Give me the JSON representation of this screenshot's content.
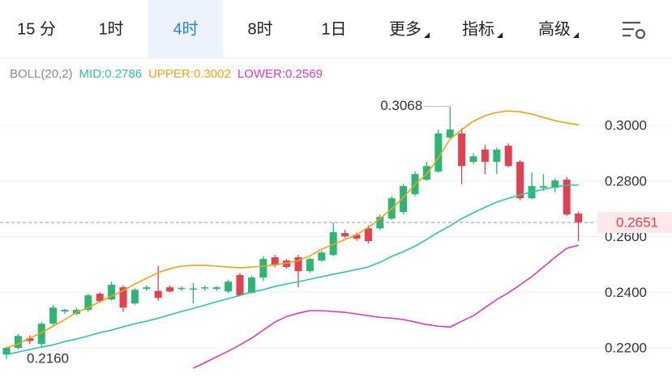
{
  "tabs": [
    {
      "label": "15 分"
    },
    {
      "label": "1时"
    },
    {
      "label": "4时"
    },
    {
      "label": "8时"
    },
    {
      "label": "1日"
    },
    {
      "label": "更多",
      "menu": true
    },
    {
      "label": "指标",
      "menu": true
    },
    {
      "label": "高级",
      "menu": true
    }
  ],
  "active_tab": 2,
  "chart_data": {
    "type": "candlestick",
    "subtitle": "BOLL(20,2)",
    "up_color": "#2bb673",
    "down_color": "#e5404f",
    "open": [
      0.2176,
      0.22,
      0.2235,
      0.2214,
      0.2287,
      0.2331,
      0.2322,
      0.2337,
      0.2395,
      0.2374,
      0.2418,
      0.236,
      0.2412,
      0.2405,
      0.2418,
      0.2412,
      0.2412,
      0.2414,
      0.2412,
      0.2403,
      0.2462,
      0.2398,
      0.2453,
      0.2526,
      0.2514,
      0.2526,
      0.2476,
      0.2514,
      0.2534,
      0.2613,
      0.2607,
      0.263,
      0.263,
      0.2665,
      0.2689,
      0.2753,
      0.2805,
      0.2834,
      0.2956,
      0.2971,
      0.2869,
      0.2913,
      0.2869,
      0.2927,
      0.2869,
      0.2738,
      0.2776,
      0.2776,
      0.2805,
      0.2683
    ],
    "high": [
      0.2205,
      0.225,
      0.2245,
      0.2295,
      0.2355,
      0.234,
      0.2345,
      0.2395,
      0.24,
      0.2438,
      0.2425,
      0.2415,
      0.2425,
      0.2495,
      0.2425,
      0.2422,
      0.2433,
      0.2425,
      0.2422,
      0.2445,
      0.247,
      0.246,
      0.253,
      0.2535,
      0.252,
      0.2535,
      0.2525,
      0.255,
      0.2651,
      0.2625,
      0.2615,
      0.264,
      0.268,
      0.2745,
      0.279,
      0.2835,
      0.287,
      0.2985,
      0.3068,
      0.299,
      0.29,
      0.293,
      0.292,
      0.2935,
      0.2875,
      0.2831,
      0.2825,
      0.281,
      0.2815,
      0.269
    ],
    "low": [
      0.216,
      0.2194,
      0.2214,
      0.2205,
      0.228,
      0.2322,
      0.2318,
      0.233,
      0.2365,
      0.237,
      0.233,
      0.2355,
      0.2405,
      0.237,
      0.24,
      0.2405,
      0.236,
      0.2405,
      0.2405,
      0.2398,
      0.2385,
      0.2395,
      0.244,
      0.249,
      0.2485,
      0.2418,
      0.247,
      0.251,
      0.253,
      0.2595,
      0.2585,
      0.2575,
      0.2625,
      0.266,
      0.268,
      0.2745,
      0.28,
      0.283,
      0.295,
      0.2788,
      0.286,
      0.2825,
      0.2825,
      0.285,
      0.273,
      0.2735,
      0.2765,
      0.276,
      0.2675,
      0.2584
    ],
    "close": [
      0.22,
      0.2243,
      0.2225,
      0.2287,
      0.2345,
      0.2337,
      0.2337,
      0.2389,
      0.2368,
      0.2427,
      0.2345,
      0.2409,
      0.2418,
      0.238,
      0.2403,
      0.2416,
      0.2414,
      0.2418,
      0.2418,
      0.2438,
      0.2389,
      0.2453,
      0.252,
      0.2497,
      0.2491,
      0.2476,
      0.252,
      0.2543,
      0.2616,
      0.2601,
      0.2593,
      0.2584,
      0.2671,
      0.2738,
      0.2782,
      0.2825,
      0.2854,
      0.2971,
      0.2985,
      0.2854,
      0.2889,
      0.2869,
      0.2913,
      0.2854,
      0.2738,
      0.2782,
      0.2782,
      0.2802,
      0.268,
      0.2651
    ],
    "series": [
      {
        "name": "MID:0.2786",
        "color": "#2ec4a6",
        "values": [
          0.2177,
          0.2185,
          0.2194,
          0.2203,
          0.2211,
          0.2223,
          0.2232,
          0.2243,
          0.2255,
          0.2264,
          0.2276,
          0.2287,
          0.2296,
          0.2307,
          0.2319,
          0.2331,
          0.2342,
          0.2354,
          0.2366,
          0.2377,
          0.2389,
          0.2401,
          0.2409,
          0.2421,
          0.243,
          0.2438,
          0.2447,
          0.2456,
          0.2465,
          0.2473,
          0.2482,
          0.2491,
          0.2508,
          0.2529,
          0.2546,
          0.2566,
          0.259,
          0.2616,
          0.2639,
          0.2665,
          0.2686,
          0.2706,
          0.2724,
          0.2738,
          0.275,
          0.2761,
          0.277,
          0.2779,
          0.2785,
          0.2786
        ]
      },
      {
        "name": "UPPER:0.3002",
        "color": "#eda612",
        "values": [
          0.22,
          0.2214,
          0.2235,
          0.2255,
          0.2278,
          0.2302,
          0.2328,
          0.2345,
          0.2366,
          0.2386,
          0.2406,
          0.243,
          0.245,
          0.2471,
          0.2485,
          0.2494,
          0.2497,
          0.2497,
          0.2494,
          0.2491,
          0.2488,
          0.2491,
          0.2494,
          0.2499,
          0.2505,
          0.2514,
          0.2531,
          0.2555,
          0.2572,
          0.259,
          0.2607,
          0.2633,
          0.2665,
          0.27,
          0.2741,
          0.2788,
          0.2825,
          0.2884,
          0.2951,
          0.2985,
          0.3015,
          0.3035,
          0.3047,
          0.3052,
          0.3049,
          0.3041,
          0.3029,
          0.3017,
          0.3009,
          0.3002
        ]
      },
      {
        "name": "LOWER:0.2569",
        "color": "#d83cbd",
        "values": [
          null,
          null,
          null,
          null,
          null,
          null,
          null,
          null,
          null,
          null,
          null,
          null,
          null,
          null,
          null,
          null,
          0.2127,
          0.2147,
          0.2168,
          0.2188,
          0.2211,
          0.2235,
          0.2264,
          0.2293,
          0.2313,
          0.2325,
          0.2334,
          0.2334,
          0.2331,
          0.2328,
          0.2322,
          0.2316,
          0.231,
          0.2307,
          0.2302,
          0.2293,
          0.2284,
          0.2278,
          0.2275,
          0.2296,
          0.2316,
          0.2345,
          0.2374,
          0.2398,
          0.2427,
          0.2456,
          0.2491,
          0.2526,
          0.2558,
          0.2569
        ]
      }
    ],
    "ylim": [
      0.211,
      0.3131
    ],
    "yticks": [
      {
        "value": 0.22,
        "label": "0.2200"
      },
      {
        "value": 0.24,
        "label": "0.2400"
      },
      {
        "value": 0.26,
        "label": "0.2600"
      },
      {
        "value": 0.28,
        "label": "0.2800"
      },
      {
        "value": 0.3,
        "label": "0.3000"
      }
    ],
    "grid": true,
    "last_price": 0.2651,
    "max_label": "0.3068",
    "min_label": "0.2160"
  }
}
